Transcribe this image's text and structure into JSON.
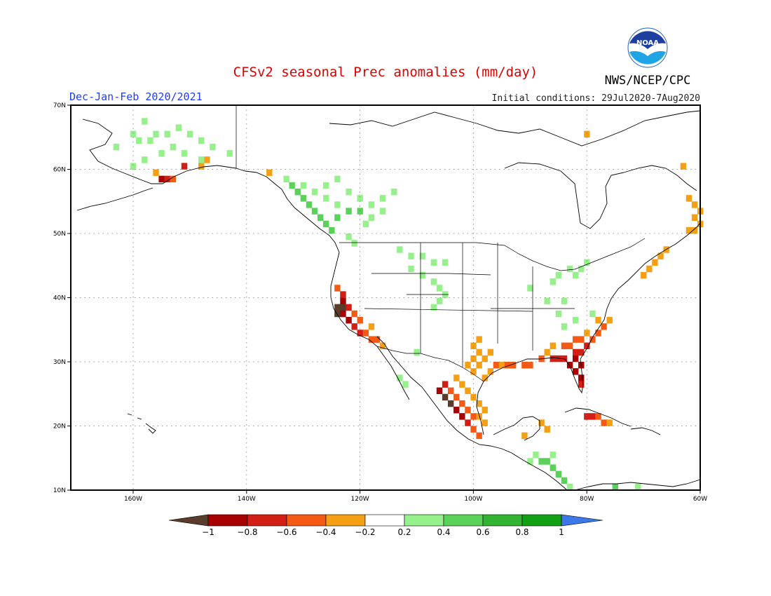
{
  "header": {
    "title": "CFSv2 seasonal Prec anomalies (mm/day)",
    "season": "Dec-Jan-Feb 2020/2021",
    "initial_conditions": "Initial conditions: 29Jul2020-7Aug2020",
    "agency": "NWS/NCEP/CPC",
    "logo_text": "NOAA"
  },
  "map": {
    "region": "North America",
    "projection": "lat-lon",
    "lon_range": [
      -171,
      -60
    ],
    "lat_range": [
      10,
      70
    ],
    "lon_ticks": [
      "160W",
      "140W",
      "120W",
      "100W",
      "80W",
      "60W"
    ],
    "lat_ticks": [
      "70N",
      "60N",
      "50N",
      "40N",
      "30N",
      "20N",
      "10N"
    ],
    "grid": "dotted",
    "cell_size_deg": 1,
    "anomaly_cells": [
      {
        "lon": -124.0,
        "lat": 38.5,
        "v": -1.0
      },
      {
        "lon": -123.0,
        "lat": 38.5,
        "v": -1.0
      },
      {
        "lon": -124.0,
        "lat": 37.5,
        "v": -1.0
      },
      {
        "lon": -123.0,
        "lat": 37.5,
        "v": -0.9
      },
      {
        "lon": -122.0,
        "lat": 36.5,
        "v": -0.9
      },
      {
        "lon": -123.0,
        "lat": 39.5,
        "v": -0.9
      },
      {
        "lon": -122.0,
        "lat": 38.5,
        "v": -0.8
      },
      {
        "lon": -121.0,
        "lat": 35.5,
        "v": -0.8
      },
      {
        "lon": -120.0,
        "lat": 34.5,
        "v": -0.7
      },
      {
        "lon": -119.0,
        "lat": 34.5,
        "v": -0.6
      },
      {
        "lon": -118.0,
        "lat": 33.5,
        "v": -0.6
      },
      {
        "lon": -117.0,
        "lat": 33.5,
        "v": -0.5
      },
      {
        "lon": -121.0,
        "lat": 37.5,
        "v": -0.6
      },
      {
        "lon": -120.0,
        "lat": 36.5,
        "v": -0.5
      },
      {
        "lon": -124.0,
        "lat": 41.5,
        "v": -0.5
      },
      {
        "lon": -123.0,
        "lat": 40.5,
        "v": -0.7
      },
      {
        "lon": -116.0,
        "lat": 32.5,
        "v": -0.4
      },
      {
        "lon": -118.0,
        "lat": 35.5,
        "v": -0.4
      },
      {
        "lon": -105.0,
        "lat": 26.5,
        "v": -0.8
      },
      {
        "lon": -106.0,
        "lat": 25.5,
        "v": -0.9
      },
      {
        "lon": -105.0,
        "lat": 24.5,
        "v": -1.0
      },
      {
        "lon": -104.0,
        "lat": 23.5,
        "v": -1.0
      },
      {
        "lon": -103.0,
        "lat": 22.5,
        "v": -0.9
      },
      {
        "lon": -102.0,
        "lat": 21.5,
        "v": -0.9
      },
      {
        "lon": -101.0,
        "lat": 20.5,
        "v": -0.8
      },
      {
        "lon": -104.0,
        "lat": 25.5,
        "v": -0.6
      },
      {
        "lon": -103.0,
        "lat": 24.5,
        "v": -0.6
      },
      {
        "lon": -102.0,
        "lat": 23.5,
        "v": -0.5
      },
      {
        "lon": -101.0,
        "lat": 22.5,
        "v": -0.6
      },
      {
        "lon": -100.0,
        "lat": 21.5,
        "v": -0.5
      },
      {
        "lon": -100.0,
        "lat": 19.5,
        "v": -0.6
      },
      {
        "lon": -99.0,
        "lat": 18.5,
        "v": -0.5
      },
      {
        "lon": -103.0,
        "lat": 27.5,
        "v": -0.4
      },
      {
        "lon": -102.0,
        "lat": 26.5,
        "v": -0.3
      },
      {
        "lon": -101.0,
        "lat": 25.5,
        "v": -0.3
      },
      {
        "lon": -100.0,
        "lat": 24.5,
        "v": -0.3
      },
      {
        "lon": -99.0,
        "lat": 23.5,
        "v": -0.3
      },
      {
        "lon": -98.0,
        "lat": 22.5,
        "v": -0.3
      },
      {
        "lon": -99.0,
        "lat": 21.5,
        "v": -0.3
      },
      {
        "lon": -98.0,
        "lat": 20.5,
        "v": -0.3
      },
      {
        "lon": -101.0,
        "lat": 29.5,
        "v": -0.3
      },
      {
        "lon": -100.0,
        "lat": 30.5,
        "v": -0.3
      },
      {
        "lon": -99.0,
        "lat": 31.5,
        "v": -0.3
      },
      {
        "lon": -100.0,
        "lat": 32.5,
        "v": -0.3
      },
      {
        "lon": -99.0,
        "lat": 33.5,
        "v": -0.3
      },
      {
        "lon": -100.0,
        "lat": 28.5,
        "v": -0.3
      },
      {
        "lon": -99.0,
        "lat": 29.5,
        "v": -0.3
      },
      {
        "lon": -98.0,
        "lat": 30.5,
        "v": -0.3
      },
      {
        "lon": -97.0,
        "lat": 31.5,
        "v": -0.3
      },
      {
        "lon": -98.0,
        "lat": 27.5,
        "v": -0.3
      },
      {
        "lon": -97.0,
        "lat": 28.5,
        "v": -0.4
      },
      {
        "lon": -96.0,
        "lat": 29.5,
        "v": -0.5
      },
      {
        "lon": -95.0,
        "lat": 29.5,
        "v": -0.4
      },
      {
        "lon": -94.0,
        "lat": 29.5,
        "v": -0.6
      },
      {
        "lon": -93.0,
        "lat": 29.5,
        "v": -0.5
      },
      {
        "lon": -91.0,
        "lat": 29.5,
        "v": -0.6
      },
      {
        "lon": -90.0,
        "lat": 29.5,
        "v": -0.5
      },
      {
        "lon": -88.0,
        "lat": 30.5,
        "v": -0.6
      },
      {
        "lon": -86.0,
        "lat": 30.5,
        "v": -0.7
      },
      {
        "lon": -85.0,
        "lat": 30.5,
        "v": -0.8
      },
      {
        "lon": -84.0,
        "lat": 30.5,
        "v": -0.8
      },
      {
        "lon": -83.0,
        "lat": 29.5,
        "v": -0.9
      },
      {
        "lon": -82.0,
        "lat": 28.5,
        "v": -0.9
      },
      {
        "lon": -81.0,
        "lat": 27.5,
        "v": -0.9
      },
      {
        "lon": -81.0,
        "lat": 26.5,
        "v": -0.8
      },
      {
        "lon": -82.0,
        "lat": 30.5,
        "v": -0.9
      },
      {
        "lon": -81.0,
        "lat": 29.5,
        "v": -0.9
      },
      {
        "lon": -82.0,
        "lat": 31.5,
        "v": -0.8
      },
      {
        "lon": -81.0,
        "lat": 31.5,
        "v": -0.7
      },
      {
        "lon": -84.0,
        "lat": 32.5,
        "v": -0.6
      },
      {
        "lon": -83.0,
        "lat": 32.5,
        "v": -0.6
      },
      {
        "lon": -80.0,
        "lat": 32.5,
        "v": -0.7
      },
      {
        "lon": -79.0,
        "lat": 33.5,
        "v": -0.6
      },
      {
        "lon": -78.0,
        "lat": 34.5,
        "v": -0.6
      },
      {
        "lon": -77.0,
        "lat": 35.5,
        "v": -0.5
      },
      {
        "lon": -76.0,
        "lat": 36.5,
        "v": -0.4
      },
      {
        "lon": -86.0,
        "lat": 32.5,
        "v": -0.4
      },
      {
        "lon": -87.0,
        "lat": 31.5,
        "v": -0.4
      },
      {
        "lon": -80.0,
        "lat": 34.5,
        "v": -0.4
      },
      {
        "lon": -78.0,
        "lat": 36.5,
        "v": -0.3
      },
      {
        "lon": -82.0,
        "lat": 33.5,
        "v": -0.5
      },
      {
        "lon": -81.0,
        "lat": 33.5,
        "v": -0.5
      },
      {
        "lon": -80.0,
        "lat": 21.5,
        "v": -0.8
      },
      {
        "lon": -79.0,
        "lat": 21.5,
        "v": -0.7
      },
      {
        "lon": -78.0,
        "lat": 21.5,
        "v": -0.6
      },
      {
        "lon": -77.0,
        "lat": 20.5,
        "v": -0.5
      },
      {
        "lon": -76.0,
        "lat": 20.5,
        "v": -0.4
      },
      {
        "lon": -88.0,
        "lat": 20.5,
        "v": -0.3
      },
      {
        "lon": -87.0,
        "lat": 19.5,
        "v": -0.3
      },
      {
        "lon": -91.0,
        "lat": 18.5,
        "v": -0.3
      },
      {
        "lon": -155.0,
        "lat": 58.5,
        "v": -0.9
      },
      {
        "lon": -154.0,
        "lat": 58.5,
        "v": -0.8
      },
      {
        "lon": -153.0,
        "lat": 58.5,
        "v": -0.6
      },
      {
        "lon": -156.0,
        "lat": 59.5,
        "v": -0.4
      },
      {
        "lon": -151.0,
        "lat": 60.5,
        "v": -0.8
      },
      {
        "lon": -148.0,
        "lat": 60.5,
        "v": -0.3
      },
      {
        "lon": -147.0,
        "lat": 61.5,
        "v": -0.3
      },
      {
        "lon": -136.0,
        "lat": 59.5,
        "v": -0.3
      },
      {
        "lon": -70.0,
        "lat": 43.5,
        "v": -0.3
      },
      {
        "lon": -69.0,
        "lat": 44.5,
        "v": -0.3
      },
      {
        "lon": -68.0,
        "lat": 45.5,
        "v": -0.3
      },
      {
        "lon": -67.0,
        "lat": 46.5,
        "v": -0.3
      },
      {
        "lon": -66.0,
        "lat": 47.5,
        "v": -0.3
      },
      {
        "lon": -62.0,
        "lat": 50.5,
        "v": -0.3
      },
      {
        "lon": -61.0,
        "lat": 50.5,
        "v": -0.3
      },
      {
        "lon": -60.0,
        "lat": 51.5,
        "v": -0.3
      },
      {
        "lon": -61.0,
        "lat": 52.5,
        "v": -0.3
      },
      {
        "lon": -60.0,
        "lat": 53.5,
        "v": -0.3
      },
      {
        "lon": -61.0,
        "lat": 54.5,
        "v": -0.3
      },
      {
        "lon": -62.0,
        "lat": 55.5,
        "v": -0.3
      },
      {
        "lon": -63.0,
        "lat": 60.5,
        "v": -0.3
      },
      {
        "lon": -80.0,
        "lat": 65.5,
        "v": -0.3
      },
      {
        "lon": -160.0,
        "lat": 65.5,
        "v": 0.3
      },
      {
        "lon": -159.0,
        "lat": 64.5,
        "v": 0.3
      },
      {
        "lon": -157.0,
        "lat": 64.5,
        "v": 0.3
      },
      {
        "lon": -156.0,
        "lat": 65.5,
        "v": 0.3
      },
      {
        "lon": -154.0,
        "lat": 65.5,
        "v": 0.3
      },
      {
        "lon": -152.0,
        "lat": 66.5,
        "v": 0.3
      },
      {
        "lon": -150.0,
        "lat": 65.5,
        "v": 0.3
      },
      {
        "lon": -148.0,
        "lat": 64.5,
        "v": 0.3
      },
      {
        "lon": -146.0,
        "lat": 63.5,
        "v": 0.3
      },
      {
        "lon": -153.0,
        "lat": 63.5,
        "v": 0.3
      },
      {
        "lon": -155.0,
        "lat": 62.5,
        "v": 0.3
      },
      {
        "lon": -158.0,
        "lat": 61.5,
        "v": 0.3
      },
      {
        "lon": -160.0,
        "lat": 60.5,
        "v": 0.3
      },
      {
        "lon": -151.0,
        "lat": 62.5,
        "v": 0.3
      },
      {
        "lon": -143.0,
        "lat": 62.5,
        "v": 0.3
      },
      {
        "lon": -148.0,
        "lat": 61.5,
        "v": 0.3
      },
      {
        "lon": -163.0,
        "lat": 63.5,
        "v": 0.3
      },
      {
        "lon": -158.0,
        "lat": 67.5,
        "v": 0.3
      },
      {
        "lon": -131.0,
        "lat": 56.5,
        "v": 0.5
      },
      {
        "lon": -130.0,
        "lat": 55.5,
        "v": 0.5
      },
      {
        "lon": -129.0,
        "lat": 54.5,
        "v": 0.5
      },
      {
        "lon": -128.0,
        "lat": 53.5,
        "v": 0.4
      },
      {
        "lon": -127.0,
        "lat": 52.5,
        "v": 0.5
      },
      {
        "lon": -126.0,
        "lat": 51.5,
        "v": 0.5
      },
      {
        "lon": -125.0,
        "lat": 50.5,
        "v": 0.4
      },
      {
        "lon": -132.0,
        "lat": 57.5,
        "v": 0.4
      },
      {
        "lon": -133.0,
        "lat": 58.5,
        "v": 0.3
      },
      {
        "lon": -130.0,
        "lat": 57.5,
        "v": 0.3
      },
      {
        "lon": -128.0,
        "lat": 56.5,
        "v": 0.3
      },
      {
        "lon": -126.0,
        "lat": 55.5,
        "v": 0.3
      },
      {
        "lon": -124.0,
        "lat": 54.5,
        "v": 0.3
      },
      {
        "lon": -122.0,
        "lat": 53.5,
        "v": 0.4
      },
      {
        "lon": -120.0,
        "lat": 53.5,
        "v": 0.4
      },
      {
        "lon": -118.0,
        "lat": 54.5,
        "v": 0.3
      },
      {
        "lon": -116.0,
        "lat": 55.5,
        "v": 0.3
      },
      {
        "lon": -114.0,
        "lat": 56.5,
        "v": 0.3
      },
      {
        "lon": -120.0,
        "lat": 55.5,
        "v": 0.3
      },
      {
        "lon": -122.0,
        "lat": 56.5,
        "v": 0.3
      },
      {
        "lon": -118.0,
        "lat": 52.5,
        "v": 0.3
      },
      {
        "lon": -124.0,
        "lat": 52.5,
        "v": 0.4
      },
      {
        "lon": -126.0,
        "lat": 57.5,
        "v": 0.3
      },
      {
        "lon": -124.0,
        "lat": 58.5,
        "v": 0.3
      },
      {
        "lon": -122.0,
        "lat": 49.5,
        "v": 0.3
      },
      {
        "lon": -121.0,
        "lat": 48.5,
        "v": 0.3
      },
      {
        "lon": -119.0,
        "lat": 51.5,
        "v": 0.3
      },
      {
        "lon": -116.0,
        "lat": 53.5,
        "v": 0.3
      },
      {
        "lon": -113.0,
        "lat": 47.5,
        "v": 0.3
      },
      {
        "lon": -111.0,
        "lat": 46.5,
        "v": 0.3
      },
      {
        "lon": -109.0,
        "lat": 46.5,
        "v": 0.3
      },
      {
        "lon": -107.0,
        "lat": 45.5,
        "v": 0.3
      },
      {
        "lon": -105.0,
        "lat": 45.5,
        "v": 0.3
      },
      {
        "lon": -111.0,
        "lat": 44.5,
        "v": 0.3
      },
      {
        "lon": -109.0,
        "lat": 43.5,
        "v": 0.3
      },
      {
        "lon": -107.0,
        "lat": 42.5,
        "v": 0.3
      },
      {
        "lon": -106.0,
        "lat": 41.5,
        "v": 0.3
      },
      {
        "lon": -106.0,
        "lat": 39.5,
        "v": 0.3
      },
      {
        "lon": -107.0,
        "lat": 38.5,
        "v": 0.3
      },
      {
        "lon": -105.0,
        "lat": 40.5,
        "v": 0.3
      },
      {
        "lon": -110.0,
        "lat": 31.5,
        "v": 0.3
      },
      {
        "lon": -113.0,
        "lat": 27.5,
        "v": 0.3
      },
      {
        "lon": -112.0,
        "lat": 26.5,
        "v": 0.3
      },
      {
        "lon": -90.0,
        "lat": 41.5,
        "v": 0.3
      },
      {
        "lon": -86.0,
        "lat": 42.5,
        "v": 0.3
      },
      {
        "lon": -85.0,
        "lat": 43.5,
        "v": 0.3
      },
      {
        "lon": -83.0,
        "lat": 44.5,
        "v": 0.3
      },
      {
        "lon": -82.0,
        "lat": 43.5,
        "v": 0.3
      },
      {
        "lon": -81.0,
        "lat": 44.5,
        "v": 0.3
      },
      {
        "lon": -80.0,
        "lat": 45.5,
        "v": 0.3
      },
      {
        "lon": -87.0,
        "lat": 39.5,
        "v": 0.3
      },
      {
        "lon": -84.0,
        "lat": 39.5,
        "v": 0.3
      },
      {
        "lon": -85.0,
        "lat": 37.5,
        "v": 0.3
      },
      {
        "lon": -84.0,
        "lat": 35.5,
        "v": 0.3
      },
      {
        "lon": -82.0,
        "lat": 36.5,
        "v": 0.3
      },
      {
        "lon": -79.0,
        "lat": 37.5,
        "v": 0.3
      },
      {
        "lon": -89.0,
        "lat": 15.5,
        "v": 0.3
      },
      {
        "lon": -88.0,
        "lat": 14.5,
        "v": 0.5
      },
      {
        "lon": -87.0,
        "lat": 14.5,
        "v": 0.4
      },
      {
        "lon": -86.0,
        "lat": 13.5,
        "v": 0.5
      },
      {
        "lon": -85.0,
        "lat": 12.5,
        "v": 0.5
      },
      {
        "lon": -84.0,
        "lat": 11.5,
        "v": 0.4
      },
      {
        "lon": -83.0,
        "lat": 10.5,
        "v": 0.3
      },
      {
        "lon": -90.0,
        "lat": 14.5,
        "v": 0.3
      },
      {
        "lon": -86.0,
        "lat": 15.5,
        "v": 0.3
      },
      {
        "lon": -75.0,
        "lat": 10.5,
        "v": 0.4
      },
      {
        "lon": -71.0,
        "lat": 10.5,
        "v": 0.3
      }
    ]
  },
  "colorbar": {
    "ticks": [
      "−1",
      "−0.8",
      "−0.6",
      "−0.4",
      "−0.2",
      "0.2",
      "0.4",
      "0.6",
      "0.8",
      "1"
    ],
    "below_color": "#5a3c2a",
    "above_color": "#3c78e8",
    "colors": [
      "#a80000",
      "#d21e14",
      "#f55a14",
      "#f5a014",
      "#ffffff",
      "#96f08c",
      "#5ad25a",
      "#32b432",
      "#14a014"
    ]
  }
}
